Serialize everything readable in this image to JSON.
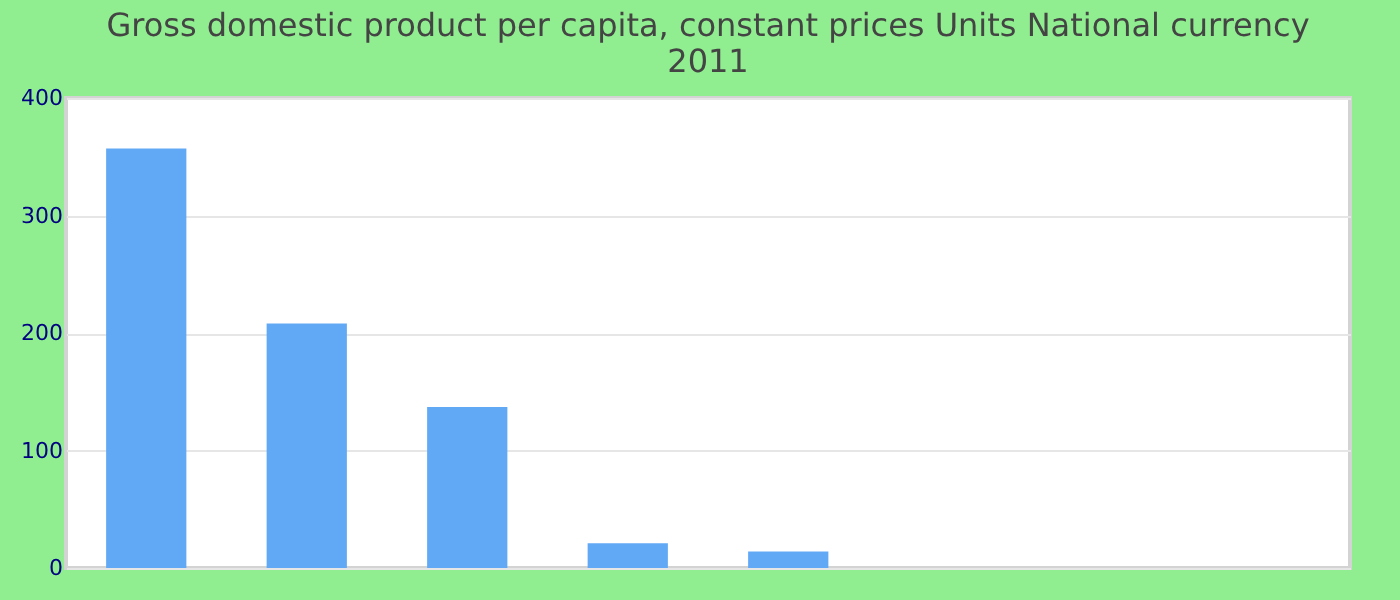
{
  "chart_data": {
    "type": "bar",
    "title": [
      "Gross domestic product per capita, constant prices Units National currency",
      "2011"
    ],
    "categories": [
      null,
      null,
      null,
      null,
      null,
      null,
      null,
      null
    ],
    "values": [
      357,
      208,
      137,
      21,
      14,
      0,
      0,
      0
    ],
    "color": "#62a9f5",
    "ylim": [
      0,
      400
    ],
    "yticks": [
      0,
      100,
      200,
      300,
      400
    ],
    "grid": "y"
  }
}
